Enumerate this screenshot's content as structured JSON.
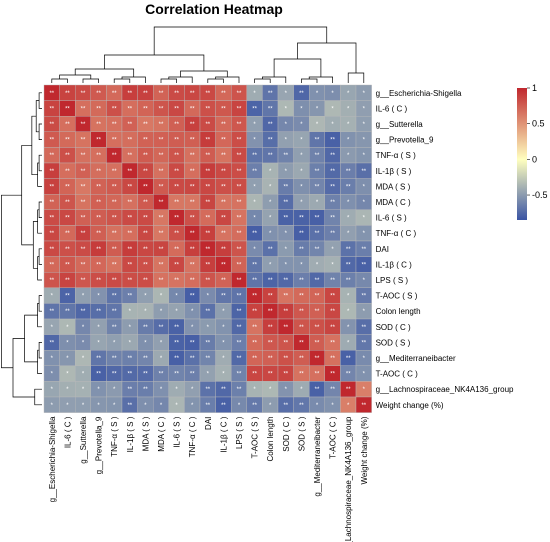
{
  "chart_data": {
    "type": "heatmap",
    "title": "Correlation Heatmap",
    "labels": [
      "g__Escherichia-Shigella",
      "IL-6 ( C )",
      "g__Sutterella",
      "g__Prevotella_9",
      "TNF-α ( S )",
      "IL-1β ( S )",
      "MDA ( S )",
      "MDA ( C )",
      "IL-6 ( S )",
      "TNF-α ( C )",
      "DAI",
      "IL-1β ( C )",
      "LPS ( S )",
      "T-AOC ( S )",
      "Colon length",
      "SOD ( C )",
      "SOD ( S )",
      "g__Mediterraneibacter",
      "T-AOC ( C )",
      "g__Lachnospiraceae_NK4A136_group",
      "Weight change (%)"
    ],
    "group_sizes": [
      13,
      6,
      2
    ],
    "group_pos_base": [
      0.62,
      0.62,
      0.55
    ],
    "inter_group_value": -0.55,
    "color_scale": {
      "min": -0.85,
      "max": 1,
      "colors": [
        "#3A54A4",
        "#FFFFBF",
        "#C0282E"
      ]
    },
    "legend_ticks": [
      1,
      0.5,
      0,
      -0.5
    ],
    "legend_tick_labels": [
      "1",
      "0.5",
      "0",
      "-0.5"
    ],
    "significance": {
      "double_threshold": 0.6,
      "single_threshold": 0.35,
      "double_mark": "**",
      "single_mark": "*"
    }
  }
}
